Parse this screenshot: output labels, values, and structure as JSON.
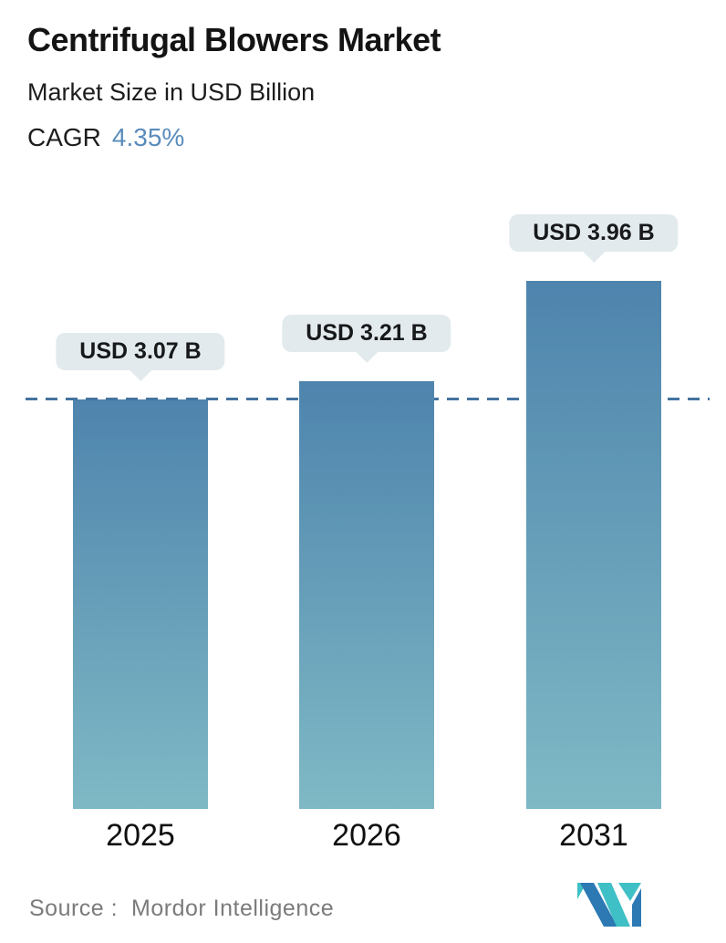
{
  "header": {
    "title": "Centrifugal Blowers Market",
    "subtitle": "Market Size in USD Billion",
    "cagr_label": "CAGR",
    "cagr_value": "4.35%"
  },
  "chart_data": {
    "type": "bar",
    "title": "Centrifugal Blowers Market",
    "subtitle": "Market Size in USD Billion",
    "ylabel": "Market Size in USD Billion",
    "categories": [
      "2025",
      "2026",
      "2031"
    ],
    "values": [
      3.07,
      3.21,
      3.96
    ],
    "bar_labels": [
      "USD 3.07 B",
      "USD 3.21 B",
      "USD 3.96 B"
    ],
    "cagr": "4.35%",
    "reference_line": {
      "value": 3.07,
      "style": "dashed"
    },
    "gridlines": false,
    "legend": "none",
    "axis_lines": "none",
    "colors": {
      "bar_gradient_top": "#4e84ad",
      "bar_gradient_bottom": "#7fb9c5",
      "dashed_line": "#44739f",
      "label_pill_bg": "#e3eaed",
      "cagr_accent": "#5a8cbb",
      "logo_teal": "#3fc0c6",
      "logo_blue": "#2d79b4"
    }
  },
  "footer": {
    "source_label": "Source :",
    "source_name": "Mordor Intelligence"
  }
}
